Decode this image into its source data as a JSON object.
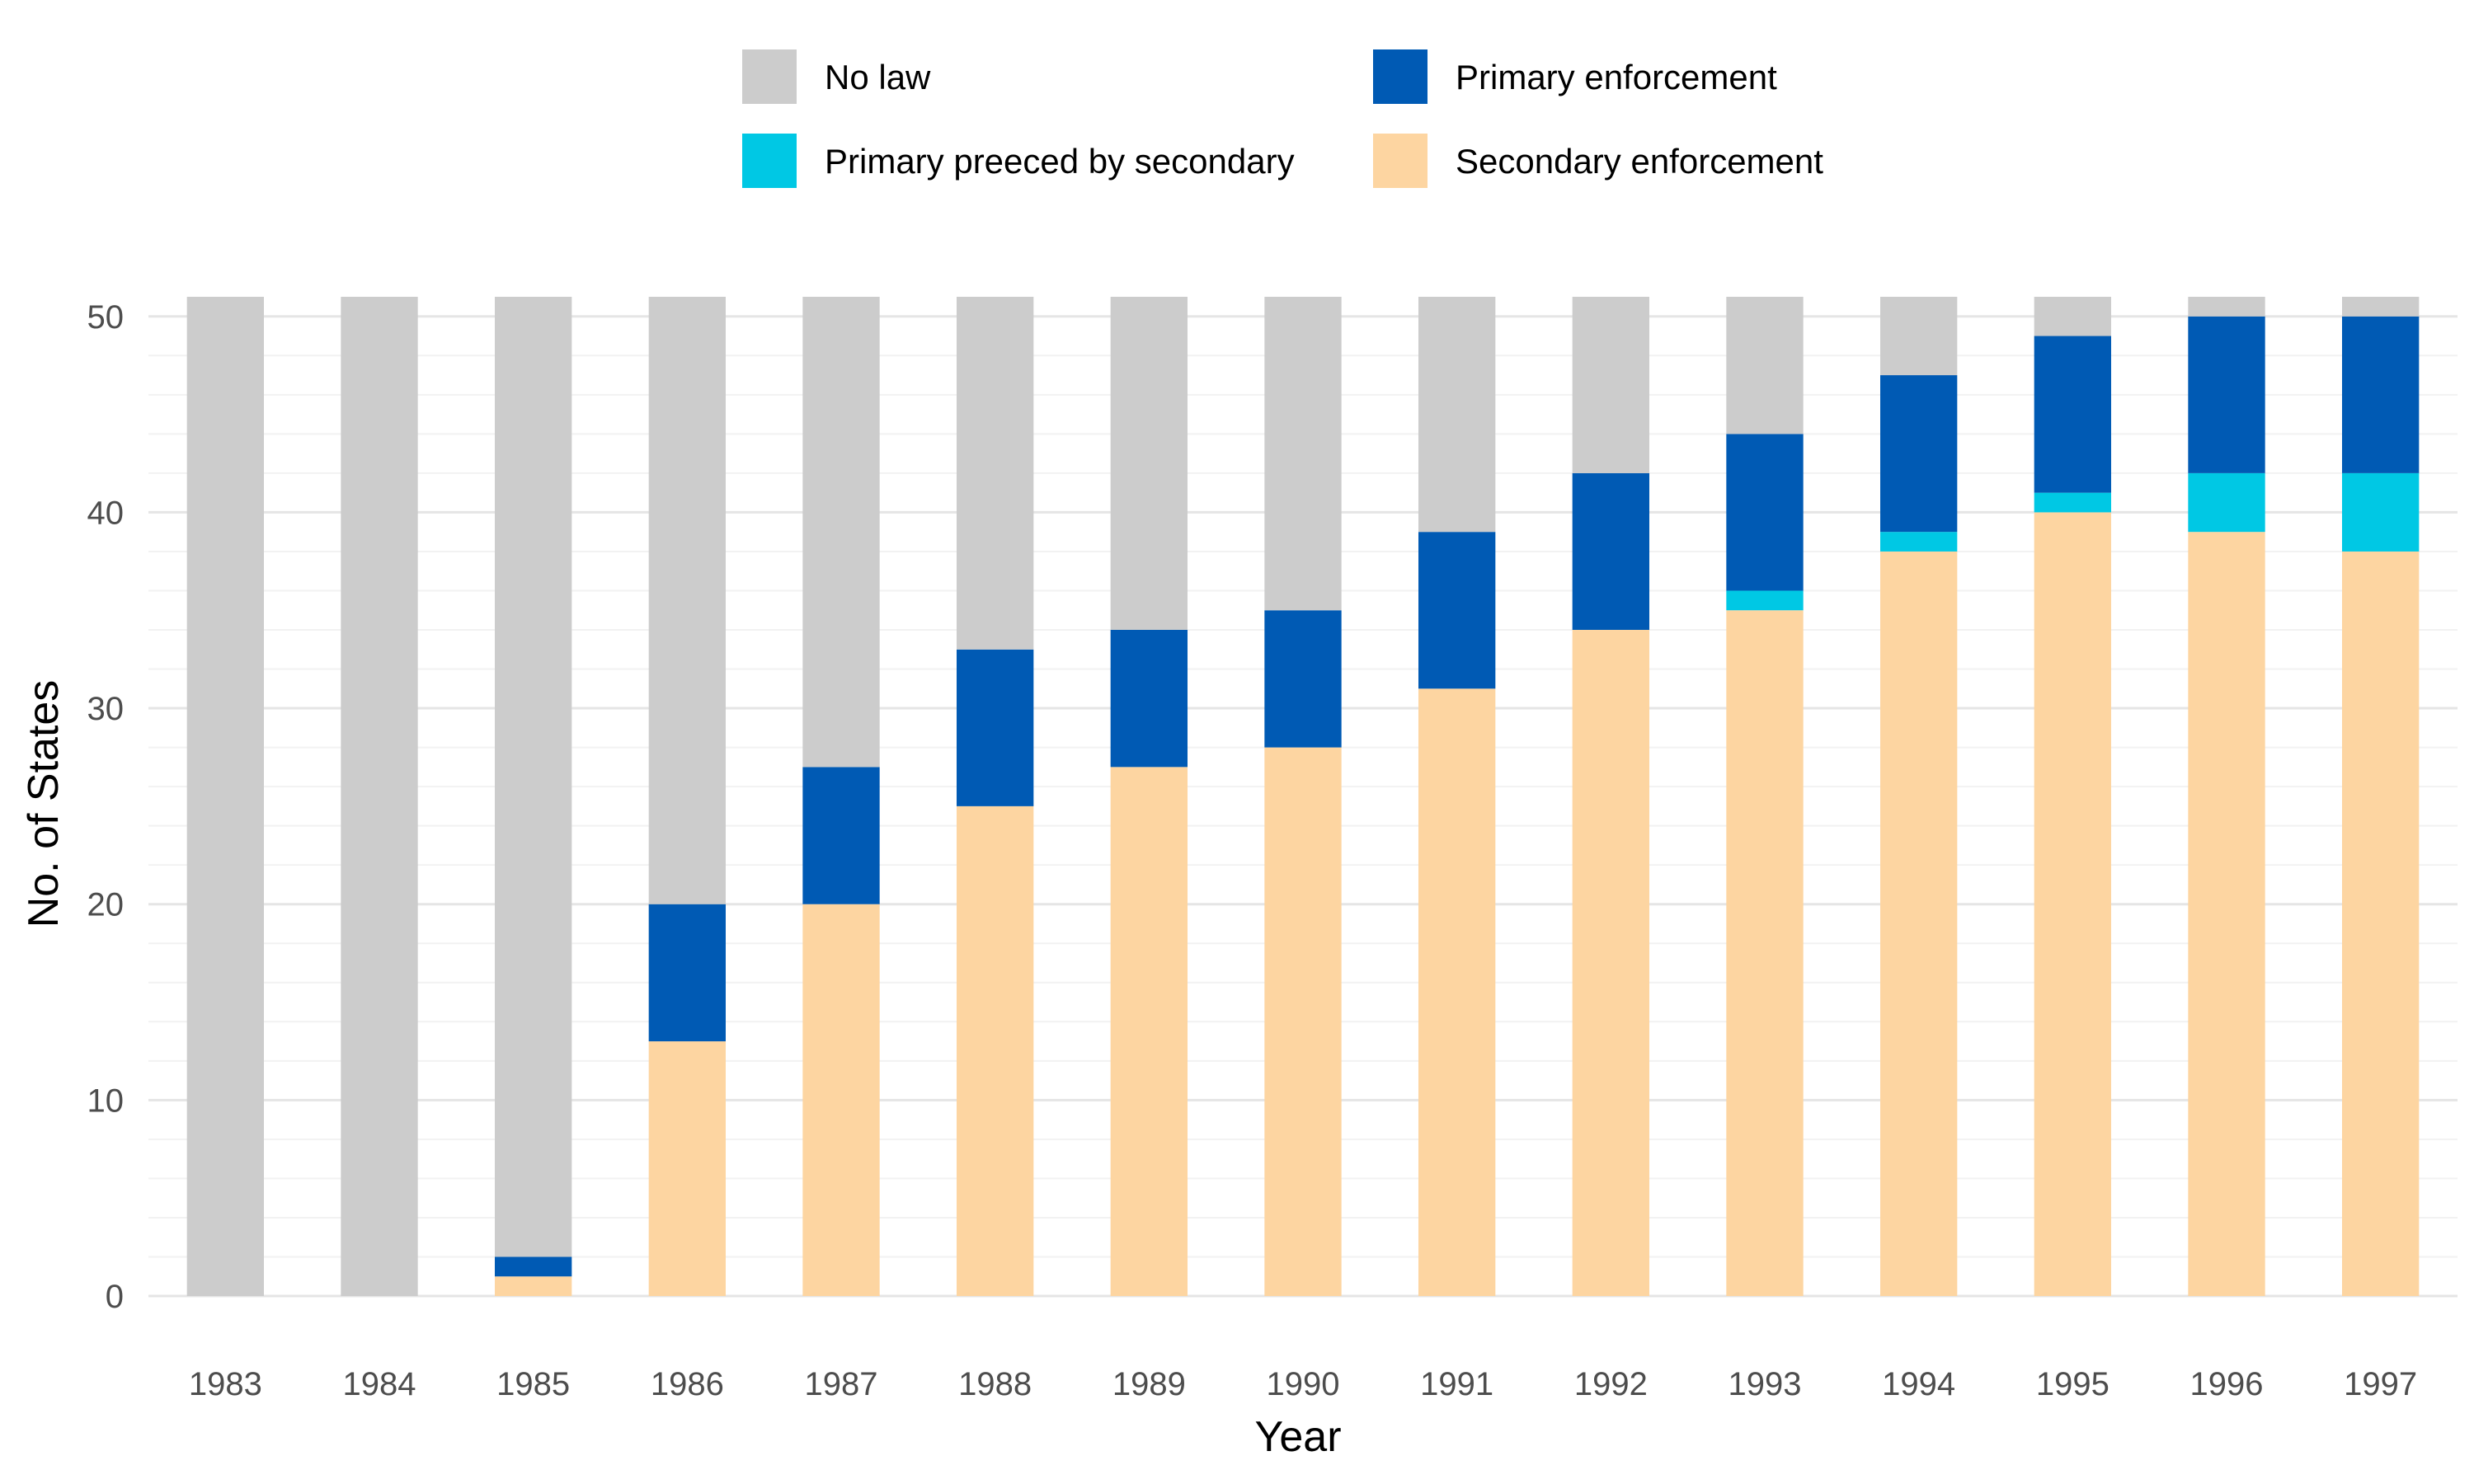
{
  "chart_data": {
    "type": "bar",
    "stacked": true,
    "title": "",
    "xlabel": "Year",
    "ylabel": "No. of States",
    "ylim": [
      0,
      51
    ],
    "yticks": [
      0,
      10,
      20,
      30,
      40,
      50
    ],
    "grid": true,
    "legend_position": "top",
    "categories": [
      "1983",
      "1984",
      "1985",
      "1986",
      "1987",
      "1988",
      "1989",
      "1990",
      "1991",
      "1992",
      "1993",
      "1994",
      "1995",
      "1996",
      "1997"
    ],
    "series": [
      {
        "name": "Secondary enforcement",
        "color": "#FDD5A1",
        "values": [
          0,
          0,
          1,
          13,
          20,
          25,
          27,
          28,
          31,
          34,
          35,
          38,
          40,
          39,
          38
        ]
      },
      {
        "name": "Primary preeced by secondary",
        "color": "#00C8E4",
        "values": [
          0,
          0,
          0,
          0,
          0,
          0,
          0,
          0,
          0,
          0,
          1,
          1,
          1,
          3,
          4
        ]
      },
      {
        "name": "Primary enforcement",
        "color": "#005AB4",
        "values": [
          0,
          0,
          1,
          7,
          7,
          8,
          7,
          7,
          8,
          8,
          8,
          8,
          8,
          8,
          8
        ]
      },
      {
        "name": "No law",
        "color": "#CCCCCC",
        "values": [
          51,
          51,
          49,
          31,
          24,
          18,
          17,
          16,
          12,
          9,
          7,
          4,
          2,
          1,
          1
        ]
      }
    ],
    "legend_order": [
      "No law",
      "Primary enforcement",
      "Primary preeced by secondary",
      "Secondary enforcement"
    ]
  }
}
